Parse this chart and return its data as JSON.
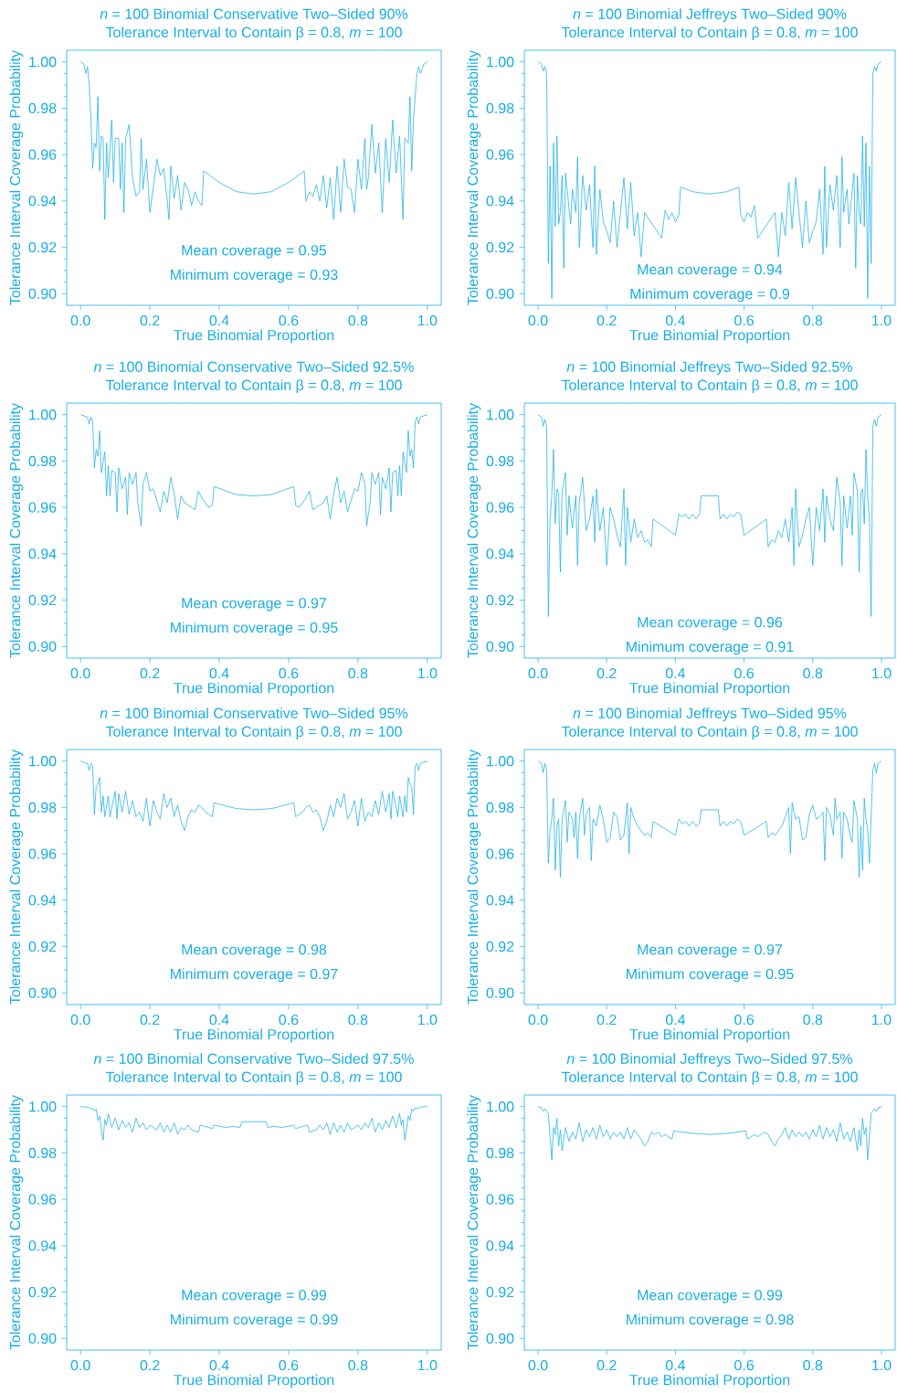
{
  "chart_data": [
    {
      "type": "line",
      "title": "*n* = 100 Binomial Conservative Two–Sided 90%",
      "subtitle": "Tolerance Interval to Contain β = 0.8, *m* = 100",
      "xlabel": "True Binomial Proportion",
      "ylabel": "Tolerance Interval Coverage Probability",
      "annotations": [
        "Mean coverage = 0.95",
        "Minimum coverage = 0.93"
      ],
      "color": "#16aee6",
      "xlim": [
        -0.04,
        1.04
      ],
      "ylim": [
        0.895,
        1.005
      ],
      "xticks": [
        {
          "value": 0,
          "label": "0.0"
        },
        {
          "value": 0.2,
          "label": "0.2"
        },
        {
          "value": 0.4,
          "label": "0.4"
        },
        {
          "value": 0.6,
          "label": "0.6"
        },
        {
          "value": 0.8,
          "label": "0.8"
        },
        {
          "value": 1,
          "label": "1.0"
        }
      ],
      "yticks": [
        {
          "value": 0.9,
          "label": "0.90"
        },
        {
          "value": 0.92,
          "label": "0.92"
        },
        {
          "value": 0.94,
          "label": "0.94"
        },
        {
          "value": 0.96,
          "label": "0.96"
        },
        {
          "value": 0.98,
          "label": "0.98"
        },
        {
          "value": 1,
          "label": "1.00"
        }
      ],
      "x": [
        0.0,
        0.01,
        0.015,
        0.02,
        0.025,
        0.03,
        0.035,
        0.04,
        0.045,
        0.05,
        0.055,
        0.06,
        0.065,
        0.07,
        0.075,
        0.08,
        0.09,
        0.095,
        0.1,
        0.11,
        0.115,
        0.12,
        0.125,
        0.13,
        0.14,
        0.15,
        0.16,
        0.17,
        0.175,
        0.18,
        0.19,
        0.2,
        0.21,
        0.22,
        0.23,
        0.24,
        0.25,
        0.255,
        0.26,
        0.27,
        0.28,
        0.29,
        0.3,
        0.31,
        0.32,
        0.33,
        0.34,
        0.35,
        0.355,
        0.4,
        0.45,
        0.5,
        0.55,
        0.6,
        0.645,
        0.65,
        0.66,
        0.67,
        0.68,
        0.69,
        0.7,
        0.71,
        0.72,
        0.73,
        0.74,
        0.75,
        0.76,
        0.77,
        0.78,
        0.79,
        0.8,
        0.81,
        0.82,
        0.825,
        0.83,
        0.84,
        0.85,
        0.86,
        0.87,
        0.88,
        0.89,
        0.9,
        0.91,
        0.92,
        0.93,
        0.935,
        0.945,
        0.95,
        0.955,
        0.96,
        0.97,
        0.975,
        0.98,
        0.99,
        1.0
      ],
      "values": [
        1.0,
        0.999,
        0.995,
        0.998,
        0.99,
        0.975,
        0.954,
        0.965,
        0.963,
        0.985,
        0.953,
        0.968,
        0.967,
        0.932,
        0.965,
        0.95,
        0.975,
        0.948,
        0.967,
        0.967,
        0.945,
        0.965,
        0.935,
        0.967,
        0.973,
        0.95,
        0.942,
        0.944,
        0.967,
        0.945,
        0.958,
        0.935,
        0.946,
        0.958,
        0.951,
        0.954,
        0.94,
        0.932,
        0.955,
        0.941,
        0.951,
        0.936,
        0.948,
        0.945,
        0.938,
        0.944,
        0.94,
        0.938,
        0.953,
        0.948,
        0.944,
        0.943,
        0.944,
        0.948,
        0.953,
        0.94,
        0.944,
        0.942,
        0.947,
        0.94,
        0.951,
        0.937,
        0.95,
        0.932,
        0.955,
        0.935,
        0.958,
        0.946,
        0.945,
        0.935,
        0.958,
        0.945,
        0.967,
        0.945,
        0.95,
        0.973,
        0.952,
        0.965,
        0.935,
        0.967,
        0.948,
        0.975,
        0.952,
        0.968,
        0.932,
        0.967,
        0.965,
        0.985,
        0.953,
        0.975,
        0.995,
        0.998,
        0.995,
        0.999,
        1.0
      ]
    },
    {
      "type": "line",
      "title": "*n* = 100 Binomial Jeffreys Two–Sided 90%",
      "subtitle": "Tolerance Interval to Contain β = 0.8, *m* = 100",
      "xlabel": "True Binomial Proportion",
      "ylabel": "Tolerance Interval Coverage Probability",
      "annotations": [
        "Mean coverage = 0.94",
        "Minimum coverage = 0.9"
      ],
      "color": "#16aee6",
      "xlim": [
        -0.04,
        1.04
      ],
      "ylim": [
        0.895,
        1.005
      ],
      "xticks": [
        {
          "value": 0,
          "label": "0.0"
        },
        {
          "value": 0.2,
          "label": "0.2"
        },
        {
          "value": 0.4,
          "label": "0.4"
        },
        {
          "value": 0.6,
          "label": "0.6"
        },
        {
          "value": 0.8,
          "label": "0.8"
        },
        {
          "value": 1,
          "label": "1.0"
        }
      ],
      "yticks": [
        {
          "value": 0.9,
          "label": "0.90"
        },
        {
          "value": 0.92,
          "label": "0.92"
        },
        {
          "value": 0.94,
          "label": "0.94"
        },
        {
          "value": 0.96,
          "label": "0.96"
        },
        {
          "value": 0.98,
          "label": "0.98"
        },
        {
          "value": 1,
          "label": "1.00"
        }
      ],
      "x": [
        0.0,
        0.01,
        0.015,
        0.02,
        0.025,
        0.03,
        0.035,
        0.04,
        0.045,
        0.05,
        0.055,
        0.06,
        0.065,
        0.07,
        0.075,
        0.08,
        0.09,
        0.095,
        0.1,
        0.11,
        0.115,
        0.12,
        0.13,
        0.14,
        0.15,
        0.16,
        0.165,
        0.17,
        0.18,
        0.19,
        0.2,
        0.21,
        0.22,
        0.23,
        0.24,
        0.25,
        0.26,
        0.27,
        0.28,
        0.29,
        0.3,
        0.31,
        0.36,
        0.37,
        0.38,
        0.39,
        0.4,
        0.41,
        0.415,
        0.45,
        0.5,
        0.55,
        0.585,
        0.59,
        0.6,
        0.61,
        0.62,
        0.63,
        0.64,
        0.69,
        0.7,
        0.71,
        0.72,
        0.73,
        0.74,
        0.75,
        0.76,
        0.77,
        0.78,
        0.79,
        0.8,
        0.81,
        0.82,
        0.83,
        0.835,
        0.84,
        0.85,
        0.86,
        0.87,
        0.88,
        0.885,
        0.89,
        0.9,
        0.905,
        0.91,
        0.92,
        0.925,
        0.93,
        0.935,
        0.94,
        0.945,
        0.95,
        0.955,
        0.96,
        0.965,
        0.97,
        0.975,
        0.98,
        0.985,
        0.99,
        1.0
      ],
      "values": [
        1.0,
        0.999,
        0.996,
        0.998,
        0.995,
        0.913,
        0.955,
        0.898,
        0.965,
        0.929,
        0.968,
        0.93,
        0.935,
        0.951,
        0.911,
        0.952,
        0.937,
        0.93,
        0.945,
        0.935,
        0.959,
        0.92,
        0.951,
        0.936,
        0.947,
        0.92,
        0.955,
        0.917,
        0.945,
        0.931,
        0.927,
        0.922,
        0.94,
        0.92,
        0.935,
        0.95,
        0.928,
        0.948,
        0.925,
        0.935,
        0.916,
        0.935,
        0.924,
        0.936,
        0.932,
        0.935,
        0.931,
        0.934,
        0.946,
        0.944,
        0.943,
        0.944,
        0.946,
        0.934,
        0.931,
        0.935,
        0.933,
        0.938,
        0.924,
        0.935,
        0.916,
        0.935,
        0.925,
        0.948,
        0.928,
        0.95,
        0.935,
        0.92,
        0.94,
        0.922,
        0.927,
        0.931,
        0.945,
        0.917,
        0.955,
        0.92,
        0.947,
        0.936,
        0.951,
        0.92,
        0.959,
        0.935,
        0.945,
        0.93,
        0.937,
        0.952,
        0.911,
        0.951,
        0.935,
        0.93,
        0.968,
        0.929,
        0.965,
        0.898,
        0.955,
        0.913,
        0.995,
        0.998,
        0.996,
        0.999,
        1.0
      ]
    },
    {
      "type": "line",
      "title": "*n* = 100 Binomial Conservative Two–Sided 92.5%",
      "subtitle": "Tolerance Interval to Contain β = 0.8, *m* = 100",
      "xlabel": "True Binomial Proportion",
      "ylabel": "Tolerance Interval Coverage Probability",
      "annotations": [
        "Mean coverage = 0.97",
        "Minimum coverage = 0.95"
      ],
      "color": "#16aee6",
      "xlim": [
        -0.04,
        1.04
      ],
      "ylim": [
        0.895,
        1.005
      ],
      "xticks": [
        {
          "value": 0,
          "label": "0.0"
        },
        {
          "value": 0.2,
          "label": "0.2"
        },
        {
          "value": 0.4,
          "label": "0.4"
        },
        {
          "value": 0.6,
          "label": "0.6"
        },
        {
          "value": 0.8,
          "label": "0.8"
        },
        {
          "value": 1,
          "label": "1.0"
        }
      ],
      "yticks": [
        {
          "value": 0.9,
          "label": "0.90"
        },
        {
          "value": 0.92,
          "label": "0.92"
        },
        {
          "value": 0.94,
          "label": "0.94"
        },
        {
          "value": 0.96,
          "label": "0.96"
        },
        {
          "value": 0.98,
          "label": "0.98"
        },
        {
          "value": 1,
          "label": "1.00"
        }
      ],
      "x": [
        0.0,
        0.01,
        0.02,
        0.025,
        0.03,
        0.035,
        0.04,
        0.045,
        0.05,
        0.055,
        0.06,
        0.07,
        0.075,
        0.08,
        0.085,
        0.09,
        0.1,
        0.105,
        0.11,
        0.12,
        0.13,
        0.135,
        0.14,
        0.15,
        0.16,
        0.165,
        0.17,
        0.175,
        0.18,
        0.19,
        0.2,
        0.21,
        0.22,
        0.23,
        0.24,
        0.25,
        0.26,
        0.27,
        0.28,
        0.29,
        0.3,
        0.33,
        0.34,
        0.35,
        0.36,
        0.37,
        0.38,
        0.385,
        0.45,
        0.5,
        0.55,
        0.615,
        0.62,
        0.63,
        0.64,
        0.65,
        0.66,
        0.67,
        0.7,
        0.71,
        0.72,
        0.73,
        0.74,
        0.75,
        0.76,
        0.77,
        0.78,
        0.79,
        0.8,
        0.81,
        0.82,
        0.825,
        0.83,
        0.835,
        0.84,
        0.85,
        0.86,
        0.865,
        0.87,
        0.88,
        0.89,
        0.895,
        0.9,
        0.91,
        0.915,
        0.92,
        0.925,
        0.93,
        0.94,
        0.945,
        0.95,
        0.955,
        0.96,
        0.965,
        0.97,
        0.975,
        0.98,
        0.99,
        1.0
      ],
      "values": [
        1.0,
        0.9995,
        0.999,
        0.996,
        0.999,
        0.997,
        0.977,
        0.985,
        0.982,
        0.993,
        0.975,
        0.984,
        0.965,
        0.978,
        0.965,
        0.976,
        0.975,
        0.958,
        0.977,
        0.968,
        0.973,
        0.957,
        0.975,
        0.97,
        0.975,
        0.962,
        0.957,
        0.952,
        0.97,
        0.975,
        0.967,
        0.968,
        0.963,
        0.958,
        0.967,
        0.962,
        0.973,
        0.966,
        0.955,
        0.965,
        0.962,
        0.959,
        0.967,
        0.964,
        0.962,
        0.96,
        0.961,
        0.969,
        0.9655,
        0.965,
        0.9655,
        0.969,
        0.961,
        0.96,
        0.962,
        0.964,
        0.967,
        0.959,
        0.962,
        0.965,
        0.955,
        0.966,
        0.973,
        0.962,
        0.967,
        0.958,
        0.963,
        0.968,
        0.967,
        0.975,
        0.97,
        0.952,
        0.957,
        0.962,
        0.975,
        0.97,
        0.975,
        0.957,
        0.973,
        0.968,
        0.977,
        0.958,
        0.975,
        0.976,
        0.965,
        0.978,
        0.965,
        0.984,
        0.975,
        0.993,
        0.982,
        0.985,
        0.977,
        0.997,
        0.999,
        0.996,
        0.999,
        0.9995,
        1.0
      ]
    },
    {
      "type": "line",
      "title": "*n* = 100 Binomial Jeffreys Two–Sided 92.5%",
      "subtitle": "Tolerance Interval to Contain β = 0.8, *m* = 100",
      "xlabel": "True Binomial Proportion",
      "ylabel": "Tolerance Interval Coverage Probability",
      "annotations": [
        "Mean coverage = 0.96",
        "Minimum coverage = 0.91"
      ],
      "color": "#16aee6",
      "xlim": [
        -0.04,
        1.04
      ],
      "ylim": [
        0.895,
        1.005
      ],
      "xticks": [
        {
          "value": 0,
          "label": "0.0"
        },
        {
          "value": 0.2,
          "label": "0.2"
        },
        {
          "value": 0.4,
          "label": "0.4"
        },
        {
          "value": 0.6,
          "label": "0.6"
        },
        {
          "value": 0.8,
          "label": "0.8"
        },
        {
          "value": 1,
          "label": "1.0"
        }
      ],
      "yticks": [
        {
          "value": 0.9,
          "label": "0.90"
        },
        {
          "value": 0.92,
          "label": "0.92"
        },
        {
          "value": 0.94,
          "label": "0.94"
        },
        {
          "value": 0.96,
          "label": "0.96"
        },
        {
          "value": 0.98,
          "label": "0.98"
        },
        {
          "value": 1,
          "label": "1.00"
        }
      ],
      "x": [
        0.0,
        0.01,
        0.015,
        0.02,
        0.025,
        0.03,
        0.035,
        0.04,
        0.045,
        0.05,
        0.055,
        0.06,
        0.065,
        0.07,
        0.08,
        0.085,
        0.09,
        0.1,
        0.11,
        0.115,
        0.12,
        0.13,
        0.14,
        0.15,
        0.16,
        0.165,
        0.17,
        0.18,
        0.19,
        0.2,
        0.21,
        0.22,
        0.23,
        0.24,
        0.25,
        0.255,
        0.26,
        0.27,
        0.28,
        0.29,
        0.3,
        0.31,
        0.32,
        0.33,
        0.335,
        0.4,
        0.41,
        0.42,
        0.43,
        0.44,
        0.45,
        0.46,
        0.47,
        0.475,
        0.525,
        0.53,
        0.54,
        0.55,
        0.56,
        0.57,
        0.58,
        0.59,
        0.6,
        0.665,
        0.67,
        0.68,
        0.69,
        0.7,
        0.71,
        0.72,
        0.73,
        0.74,
        0.745,
        0.75,
        0.76,
        0.77,
        0.78,
        0.79,
        0.8,
        0.81,
        0.82,
        0.83,
        0.835,
        0.84,
        0.85,
        0.86,
        0.87,
        0.88,
        0.885,
        0.89,
        0.9,
        0.91,
        0.915,
        0.92,
        0.93,
        0.935,
        0.94,
        0.945,
        0.95,
        0.955,
        0.96,
        0.965,
        0.97,
        0.975,
        0.98,
        0.985,
        0.99,
        1.0
      ],
      "values": [
        1.0,
        0.999,
        0.995,
        0.998,
        0.995,
        0.913,
        0.955,
        0.965,
        0.985,
        0.953,
        0.968,
        0.966,
        0.932,
        0.967,
        0.975,
        0.948,
        0.965,
        0.951,
        0.965,
        0.935,
        0.962,
        0.973,
        0.95,
        0.955,
        0.965,
        0.945,
        0.968,
        0.95,
        0.96,
        0.935,
        0.96,
        0.955,
        0.948,
        0.943,
        0.968,
        0.935,
        0.96,
        0.945,
        0.955,
        0.947,
        0.95,
        0.945,
        0.946,
        0.943,
        0.955,
        0.948,
        0.957,
        0.956,
        0.957,
        0.955,
        0.957,
        0.955,
        0.957,
        0.965,
        0.965,
        0.955,
        0.957,
        0.955,
        0.957,
        0.956,
        0.958,
        0.957,
        0.948,
        0.955,
        0.943,
        0.946,
        0.945,
        0.95,
        0.947,
        0.955,
        0.945,
        0.96,
        0.935,
        0.968,
        0.943,
        0.948,
        0.955,
        0.96,
        0.935,
        0.96,
        0.95,
        0.968,
        0.945,
        0.965,
        0.955,
        0.95,
        0.973,
        0.962,
        0.935,
        0.965,
        0.951,
        0.965,
        0.948,
        0.975,
        0.967,
        0.932,
        0.966,
        0.968,
        0.953,
        0.985,
        0.965,
        0.955,
        0.913,
        0.995,
        0.998,
        0.995,
        0.999,
        1.0
      ]
    },
    {
      "type": "line",
      "title": "*n* = 100 Binomial Conservative Two–Sided 95%",
      "subtitle": "Tolerance Interval to Contain β = 0.8, *m* = 100",
      "xlabel": "True Binomial Proportion",
      "ylabel": "Tolerance Interval Coverage Probability",
      "annotations": [
        "Mean coverage = 0.98",
        "Minimum coverage = 0.97"
      ],
      "color": "#16aee6",
      "xlim": [
        -0.04,
        1.04
      ],
      "ylim": [
        0.895,
        1.005
      ],
      "xticks": [
        {
          "value": 0,
          "label": "0.0"
        },
        {
          "value": 0.2,
          "label": "0.2"
        },
        {
          "value": 0.4,
          "label": "0.4"
        },
        {
          "value": 0.6,
          "label": "0.6"
        },
        {
          "value": 0.8,
          "label": "0.8"
        },
        {
          "value": 1,
          "label": "1.0"
        }
      ],
      "yticks": [
        {
          "value": 0.9,
          "label": "0.90"
        },
        {
          "value": 0.92,
          "label": "0.92"
        },
        {
          "value": 0.94,
          "label": "0.94"
        },
        {
          "value": 0.96,
          "label": "0.96"
        },
        {
          "value": 0.98,
          "label": "0.98"
        },
        {
          "value": 1,
          "label": "1.00"
        }
      ],
      "x": [
        0.0,
        0.01,
        0.02,
        0.025,
        0.03,
        0.035,
        0.04,
        0.045,
        0.05,
        0.055,
        0.06,
        0.065,
        0.07,
        0.08,
        0.085,
        0.09,
        0.1,
        0.105,
        0.11,
        0.12,
        0.13,
        0.14,
        0.15,
        0.16,
        0.17,
        0.18,
        0.19,
        0.2,
        0.21,
        0.22,
        0.23,
        0.24,
        0.25,
        0.26,
        0.27,
        0.28,
        0.29,
        0.3,
        0.31,
        0.32,
        0.33,
        0.34,
        0.35,
        0.36,
        0.37,
        0.38,
        0.385,
        0.45,
        0.5,
        0.55,
        0.615,
        0.62,
        0.63,
        0.64,
        0.65,
        0.66,
        0.67,
        0.68,
        0.69,
        0.7,
        0.71,
        0.72,
        0.73,
        0.74,
        0.75,
        0.76,
        0.77,
        0.78,
        0.79,
        0.8,
        0.81,
        0.82,
        0.83,
        0.84,
        0.85,
        0.86,
        0.87,
        0.88,
        0.89,
        0.895,
        0.9,
        0.91,
        0.915,
        0.92,
        0.93,
        0.935,
        0.94,
        0.945,
        0.95,
        0.955,
        0.96,
        0.965,
        0.97,
        0.975,
        0.98,
        0.99,
        1.0
      ],
      "values": [
        1.0,
        0.9995,
        0.999,
        0.996,
        0.999,
        0.998,
        0.977,
        0.989,
        0.99,
        0.993,
        0.978,
        0.985,
        0.976,
        0.985,
        0.976,
        0.98,
        0.987,
        0.975,
        0.986,
        0.978,
        0.987,
        0.977,
        0.983,
        0.976,
        0.978,
        0.974,
        0.984,
        0.972,
        0.983,
        0.978,
        0.975,
        0.986,
        0.98,
        0.984,
        0.976,
        0.981,
        0.974,
        0.97,
        0.976,
        0.979,
        0.978,
        0.981,
        0.98,
        0.978,
        0.977,
        0.976,
        0.982,
        0.9795,
        0.979,
        0.9795,
        0.982,
        0.976,
        0.977,
        0.978,
        0.98,
        0.981,
        0.978,
        0.979,
        0.976,
        0.97,
        0.974,
        0.981,
        0.976,
        0.984,
        0.98,
        0.986,
        0.975,
        0.978,
        0.983,
        0.972,
        0.984,
        0.974,
        0.978,
        0.976,
        0.983,
        0.977,
        0.987,
        0.978,
        0.986,
        0.975,
        0.987,
        0.98,
        0.976,
        0.985,
        0.976,
        0.985,
        0.978,
        0.993,
        0.99,
        0.989,
        0.977,
        0.998,
        0.999,
        0.996,
        0.999,
        0.9995,
        1.0
      ]
    },
    {
      "type": "line",
      "title": "*n* = 100 Binomial Jeffreys Two–Sided 95%",
      "subtitle": "Tolerance Interval to Contain β = 0.8, *m* = 100",
      "xlabel": "True Binomial Proportion",
      "ylabel": "Tolerance Interval Coverage Probability",
      "annotations": [
        "Mean coverage = 0.97",
        "Minimum coverage = 0.95"
      ],
      "color": "#16aee6",
      "xlim": [
        -0.04,
        1.04
      ],
      "ylim": [
        0.895,
        1.005
      ],
      "xticks": [
        {
          "value": 0,
          "label": "0.0"
        },
        {
          "value": 0.2,
          "label": "0.2"
        },
        {
          "value": 0.4,
          "label": "0.4"
        },
        {
          "value": 0.6,
          "label": "0.6"
        },
        {
          "value": 0.8,
          "label": "0.8"
        },
        {
          "value": 1,
          "label": "1.0"
        }
      ],
      "yticks": [
        {
          "value": 0.9,
          "label": "0.90"
        },
        {
          "value": 0.92,
          "label": "0.92"
        },
        {
          "value": 0.94,
          "label": "0.94"
        },
        {
          "value": 0.96,
          "label": "0.96"
        },
        {
          "value": 0.98,
          "label": "0.98"
        },
        {
          "value": 1,
          "label": "1.00"
        }
      ],
      "x": [
        0.0,
        0.01,
        0.015,
        0.02,
        0.025,
        0.03,
        0.035,
        0.04,
        0.045,
        0.05,
        0.055,
        0.06,
        0.065,
        0.07,
        0.08,
        0.085,
        0.09,
        0.1,
        0.105,
        0.11,
        0.115,
        0.12,
        0.13,
        0.135,
        0.14,
        0.15,
        0.155,
        0.16,
        0.17,
        0.18,
        0.19,
        0.2,
        0.21,
        0.22,
        0.23,
        0.24,
        0.25,
        0.26,
        0.265,
        0.27,
        0.28,
        0.29,
        0.3,
        0.31,
        0.32,
        0.33,
        0.335,
        0.4,
        0.41,
        0.42,
        0.43,
        0.44,
        0.45,
        0.46,
        0.47,
        0.475,
        0.525,
        0.53,
        0.54,
        0.55,
        0.56,
        0.57,
        0.58,
        0.59,
        0.6,
        0.665,
        0.67,
        0.68,
        0.69,
        0.7,
        0.71,
        0.72,
        0.73,
        0.735,
        0.74,
        0.75,
        0.76,
        0.77,
        0.78,
        0.79,
        0.8,
        0.81,
        0.82,
        0.83,
        0.835,
        0.84,
        0.85,
        0.86,
        0.865,
        0.87,
        0.88,
        0.885,
        0.89,
        0.9,
        0.91,
        0.915,
        0.92,
        0.93,
        0.935,
        0.94,
        0.945,
        0.95,
        0.955,
        0.96,
        0.965,
        0.975,
        0.98,
        0.985,
        0.99,
        1.0
      ],
      "values": [
        1.0,
        0.999,
        0.995,
        0.999,
        0.996,
        0.956,
        0.97,
        0.975,
        0.984,
        0.953,
        0.972,
        0.975,
        0.95,
        0.975,
        0.983,
        0.965,
        0.978,
        0.975,
        0.967,
        0.978,
        0.958,
        0.975,
        0.984,
        0.968,
        0.977,
        0.98,
        0.957,
        0.975,
        0.972,
        0.981,
        0.975,
        0.965,
        0.967,
        0.978,
        0.976,
        0.966,
        0.968,
        0.982,
        0.96,
        0.98,
        0.975,
        0.972,
        0.97,
        0.968,
        0.969,
        0.967,
        0.974,
        0.968,
        0.975,
        0.973,
        0.974,
        0.972,
        0.974,
        0.972,
        0.973,
        0.979,
        0.979,
        0.972,
        0.974,
        0.972,
        0.974,
        0.973,
        0.975,
        0.974,
        0.968,
        0.974,
        0.967,
        0.969,
        0.968,
        0.97,
        0.972,
        0.976,
        0.98,
        0.96,
        0.982,
        0.975,
        0.976,
        0.966,
        0.967,
        0.977,
        0.981,
        0.975,
        0.976,
        0.978,
        0.957,
        0.98,
        0.977,
        0.968,
        0.984,
        0.975,
        0.978,
        0.958,
        0.978,
        0.975,
        0.967,
        0.965,
        0.983,
        0.975,
        0.95,
        0.972,
        0.953,
        0.984,
        0.975,
        0.97,
        0.956,
        0.996,
        0.999,
        0.995,
        0.999,
        1.0
      ]
    },
    {
      "type": "line",
      "title": "*n* = 100 Binomial Conservative Two–Sided 97.5%",
      "subtitle": "Tolerance Interval to Contain β = 0.8, *m* = 100",
      "xlabel": "True Binomial Proportion",
      "ylabel": "Tolerance Interval Coverage Probability",
      "annotations": [
        "Mean coverage = 0.99",
        "Minimum coverage = 0.99"
      ],
      "color": "#16aee6",
      "xlim": [
        -0.04,
        1.04
      ],
      "ylim": [
        0.895,
        1.005
      ],
      "xticks": [
        {
          "value": 0,
          "label": "0.0"
        },
        {
          "value": 0.2,
          "label": "0.2"
        },
        {
          "value": 0.4,
          "label": "0.4"
        },
        {
          "value": 0.6,
          "label": "0.6"
        },
        {
          "value": 0.8,
          "label": "0.8"
        },
        {
          "value": 1,
          "label": "1.0"
        }
      ],
      "yticks": [
        {
          "value": 0.9,
          "label": "0.90"
        },
        {
          "value": 0.92,
          "label": "0.92"
        },
        {
          "value": 0.94,
          "label": "0.94"
        },
        {
          "value": 0.96,
          "label": "0.96"
        },
        {
          "value": 0.98,
          "label": "0.98"
        },
        {
          "value": 1,
          "label": "1.00"
        }
      ],
      "x": [
        0.0,
        0.02,
        0.03,
        0.035,
        0.04,
        0.045,
        0.05,
        0.055,
        0.06,
        0.065,
        0.07,
        0.075,
        0.08,
        0.09,
        0.1,
        0.11,
        0.12,
        0.13,
        0.14,
        0.15,
        0.16,
        0.17,
        0.18,
        0.19,
        0.2,
        0.22,
        0.23,
        0.24,
        0.25,
        0.26,
        0.27,
        0.28,
        0.29,
        0.3,
        0.31,
        0.32,
        0.34,
        0.345,
        0.37,
        0.38,
        0.385,
        0.4,
        0.42,
        0.44,
        0.46,
        0.465,
        0.535,
        0.54,
        0.56,
        0.58,
        0.6,
        0.615,
        0.62,
        0.63,
        0.655,
        0.66,
        0.68,
        0.69,
        0.7,
        0.71,
        0.72,
        0.73,
        0.74,
        0.75,
        0.76,
        0.77,
        0.78,
        0.8,
        0.81,
        0.82,
        0.83,
        0.84,
        0.85,
        0.86,
        0.87,
        0.88,
        0.89,
        0.9,
        0.91,
        0.92,
        0.925,
        0.93,
        0.935,
        0.94,
        0.945,
        0.95,
        0.955,
        0.96,
        0.965,
        0.97,
        0.98,
        1.0
      ],
      "values": [
        1.0,
        0.9998,
        0.999,
        0.9995,
        0.998,
        0.999,
        0.994,
        0.996,
        0.99,
        0.9855,
        0.9945,
        0.992,
        0.997,
        0.991,
        0.995,
        0.99,
        0.994,
        0.991,
        0.993,
        0.989,
        0.995,
        0.991,
        0.993,
        0.99,
        0.992,
        0.99,
        0.993,
        0.989,
        0.992,
        0.989,
        0.993,
        0.988,
        0.991,
        0.99,
        0.992,
        0.99,
        0.989,
        0.992,
        0.991,
        0.9905,
        0.992,
        0.9915,
        0.991,
        0.9915,
        0.991,
        0.9935,
        0.9935,
        0.991,
        0.9915,
        0.991,
        0.9915,
        0.992,
        0.9905,
        0.991,
        0.992,
        0.989,
        0.99,
        0.992,
        0.99,
        0.993,
        0.988,
        0.993,
        0.989,
        0.992,
        0.989,
        0.993,
        0.99,
        0.992,
        0.99,
        0.993,
        0.991,
        0.995,
        0.989,
        0.993,
        0.99,
        0.994,
        0.991,
        0.996,
        0.991,
        0.997,
        0.992,
        0.9945,
        0.9855,
        0.99,
        0.996,
        0.994,
        0.999,
        0.998,
        0.9995,
        0.999,
        0.9998,
        1.0
      ]
    },
    {
      "type": "line",
      "title": "*n* = 100 Binomial Jeffreys Two–Sided 97.5%",
      "subtitle": "Tolerance Interval to Contain β = 0.8, *m* = 100",
      "xlabel": "True Binomial Proportion",
      "ylabel": "Tolerance Interval Coverage Probability",
      "annotations": [
        "Mean coverage = 0.99",
        "Minimum coverage = 0.98"
      ],
      "color": "#16aee6",
      "xlim": [
        -0.04,
        1.04
      ],
      "ylim": [
        0.895,
        1.005
      ],
      "xticks": [
        {
          "value": 0,
          "label": "0.0"
        },
        {
          "value": 0.2,
          "label": "0.2"
        },
        {
          "value": 0.4,
          "label": "0.4"
        },
        {
          "value": 0.6,
          "label": "0.6"
        },
        {
          "value": 0.8,
          "label": "0.8"
        },
        {
          "value": 1,
          "label": "1.0"
        }
      ],
      "yticks": [
        {
          "value": 0.9,
          "label": "0.90"
        },
        {
          "value": 0.92,
          "label": "0.92"
        },
        {
          "value": 0.94,
          "label": "0.94"
        },
        {
          "value": 0.96,
          "label": "0.96"
        },
        {
          "value": 0.98,
          "label": "0.98"
        },
        {
          "value": 1,
          "label": "1.00"
        }
      ],
      "x": [
        0.0,
        0.01,
        0.015,
        0.02,
        0.03,
        0.035,
        0.04,
        0.045,
        0.05,
        0.055,
        0.06,
        0.065,
        0.07,
        0.08,
        0.09,
        0.1,
        0.11,
        0.12,
        0.13,
        0.14,
        0.15,
        0.16,
        0.17,
        0.18,
        0.19,
        0.2,
        0.21,
        0.22,
        0.23,
        0.24,
        0.25,
        0.26,
        0.27,
        0.28,
        0.29,
        0.3,
        0.31,
        0.32,
        0.33,
        0.34,
        0.35,
        0.36,
        0.37,
        0.38,
        0.39,
        0.395,
        0.45,
        0.5,
        0.55,
        0.605,
        0.61,
        0.62,
        0.63,
        0.64,
        0.65,
        0.66,
        0.67,
        0.68,
        0.69,
        0.7,
        0.71,
        0.72,
        0.73,
        0.74,
        0.75,
        0.76,
        0.77,
        0.78,
        0.79,
        0.8,
        0.81,
        0.82,
        0.83,
        0.84,
        0.85,
        0.86,
        0.87,
        0.88,
        0.89,
        0.9,
        0.91,
        0.92,
        0.93,
        0.935,
        0.94,
        0.945,
        0.95,
        0.955,
        0.96,
        0.965,
        0.97,
        0.98,
        0.985,
        0.99,
        1.0
      ],
      "values": [
        1.0,
        0.9995,
        0.998,
        0.999,
        0.997,
        0.987,
        0.977,
        0.991,
        0.988,
        0.995,
        0.983,
        0.99,
        0.981,
        0.991,
        0.985,
        0.989,
        0.986,
        0.993,
        0.985,
        0.99,
        0.987,
        0.991,
        0.986,
        0.992,
        0.987,
        0.99,
        0.986,
        0.989,
        0.987,
        0.989,
        0.986,
        0.991,
        0.986,
        0.99,
        0.988,
        0.986,
        0.983,
        0.985,
        0.989,
        0.988,
        0.989,
        0.987,
        0.988,
        0.987,
        0.986,
        0.9895,
        0.9885,
        0.988,
        0.9885,
        0.9895,
        0.986,
        0.987,
        0.988,
        0.987,
        0.988,
        0.989,
        0.988,
        0.985,
        0.983,
        0.986,
        0.988,
        0.991,
        0.986,
        0.99,
        0.987,
        0.989,
        0.987,
        0.989,
        0.986,
        0.99,
        0.987,
        0.992,
        0.986,
        0.991,
        0.987,
        0.99,
        0.985,
        0.993,
        0.986,
        0.989,
        0.985,
        0.991,
        0.981,
        0.99,
        0.983,
        0.995,
        0.988,
        0.991,
        0.977,
        0.987,
        0.997,
        0.999,
        0.998,
        0.9995,
        1.0
      ]
    }
  ]
}
